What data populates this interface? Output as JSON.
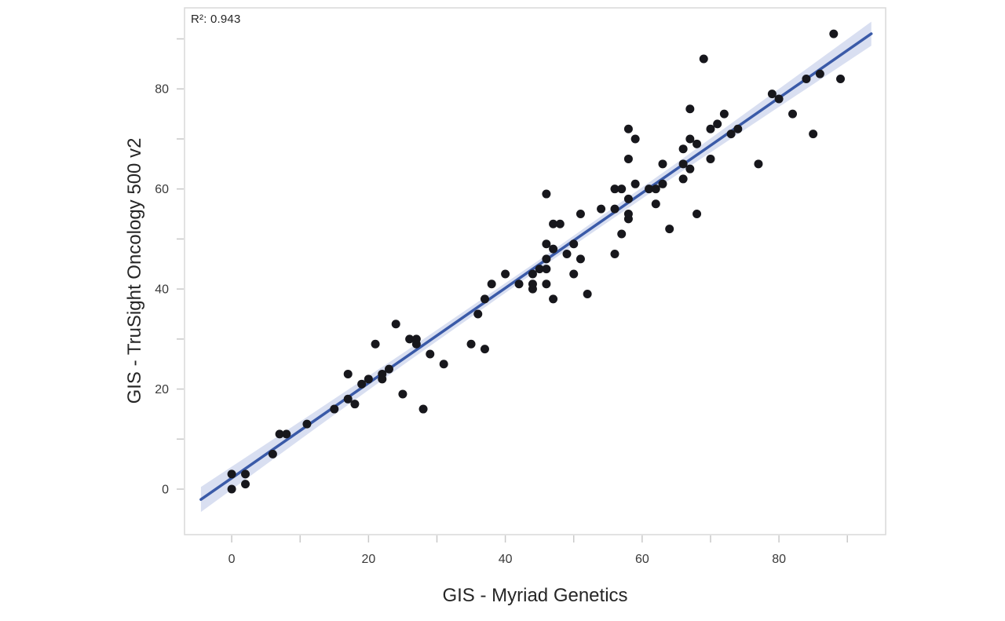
{
  "chart_data": {
    "type": "scatter",
    "title": "",
    "xlabel": "GIS - Myriad Genetics",
    "ylabel": "GIS - TruSight Oncology 500 v2",
    "annotation": "R²: 0.943",
    "r_squared": 0.943,
    "grid": false,
    "legend_position": "none",
    "xlim": [
      -6.9,
      95.6
    ],
    "ylim": [
      -9.1,
      96.2
    ],
    "x_ticks_major": [
      0,
      20,
      40,
      60,
      80
    ],
    "x_ticks_minor": [
      10,
      30,
      50,
      70,
      90
    ],
    "y_ticks_major": [
      0,
      20,
      40,
      60,
      80
    ],
    "y_ticks_minor": [
      10,
      30,
      50,
      70,
      90
    ],
    "points": [
      [
        0,
        0
      ],
      [
        0,
        3
      ],
      [
        2,
        1
      ],
      [
        2,
        3
      ],
      [
        6,
        7
      ],
      [
        7,
        11
      ],
      [
        8,
        11
      ],
      [
        11,
        13
      ],
      [
        15,
        16
      ],
      [
        17,
        18
      ],
      [
        17,
        23
      ],
      [
        18,
        17
      ],
      [
        19,
        21
      ],
      [
        20,
        22
      ],
      [
        22,
        22
      ],
      [
        22,
        23
      ],
      [
        23,
        24
      ],
      [
        21,
        29
      ],
      [
        24,
        33
      ],
      [
        25,
        19
      ],
      [
        26,
        30
      ],
      [
        27,
        29
      ],
      [
        27,
        30
      ],
      [
        28,
        16
      ],
      [
        29,
        27
      ],
      [
        31,
        25
      ],
      [
        35,
        29
      ],
      [
        36,
        35
      ],
      [
        37,
        28
      ],
      [
        37,
        38
      ],
      [
        38,
        41
      ],
      [
        40,
        43
      ],
      [
        42,
        41
      ],
      [
        44,
        40
      ],
      [
        44,
        41
      ],
      [
        44,
        43
      ],
      [
        45,
        44
      ],
      [
        46,
        41
      ],
      [
        46,
        44
      ],
      [
        46,
        46
      ],
      [
        46,
        49
      ],
      [
        46,
        59
      ],
      [
        47,
        38
      ],
      [
        47,
        48
      ],
      [
        47,
        53
      ],
      [
        48,
        53
      ],
      [
        49,
        47
      ],
      [
        50,
        43
      ],
      [
        50,
        49
      ],
      [
        51,
        46
      ],
      [
        51,
        55
      ],
      [
        52,
        39
      ],
      [
        54,
        56
      ],
      [
        56,
        47
      ],
      [
        56,
        56
      ],
      [
        56,
        60
      ],
      [
        57,
        51
      ],
      [
        57,
        60
      ],
      [
        58,
        54
      ],
      [
        58,
        55
      ],
      [
        58,
        58
      ],
      [
        58,
        66
      ],
      [
        58,
        72
      ],
      [
        59,
        61
      ],
      [
        59,
        70
      ],
      [
        61,
        60
      ],
      [
        62,
        57
      ],
      [
        62,
        60
      ],
      [
        63,
        61
      ],
      [
        63,
        65
      ],
      [
        64,
        52
      ],
      [
        66,
        62
      ],
      [
        66,
        65
      ],
      [
        66,
        68
      ],
      [
        67,
        64
      ],
      [
        67,
        70
      ],
      [
        67,
        76
      ],
      [
        68,
        55
      ],
      [
        68,
        69
      ],
      [
        69,
        86
      ],
      [
        70,
        66
      ],
      [
        70,
        72
      ],
      [
        71,
        73
      ],
      [
        72,
        75
      ],
      [
        73,
        71
      ],
      [
        74,
        72
      ],
      [
        77,
        65
      ],
      [
        79,
        79
      ],
      [
        80,
        78
      ],
      [
        82,
        75
      ],
      [
        84,
        82
      ],
      [
        85,
        71
      ],
      [
        86,
        83
      ],
      [
        88,
        91
      ],
      [
        89,
        82
      ]
    ],
    "regression_line": {
      "slope": 0.95,
      "intercept": 2.2,
      "x_start": -4.5,
      "x_end": 93.5
    },
    "confidence_band": {
      "x": [
        -4.5,
        10,
        25,
        45,
        65,
        80,
        93.5
      ],
      "half_width": [
        2.5,
        1.8,
        1.2,
        0.9,
        1.2,
        1.8,
        2.4
      ]
    },
    "colors": {
      "point": "#17171c",
      "line": "#3a5aa8",
      "band": "#d9dff1",
      "panel_border": "#d9d9d9",
      "tick": "#c9c9c9",
      "tick_label": "#3a3a3a",
      "title": "#262626",
      "background": "#ffffff"
    }
  }
}
